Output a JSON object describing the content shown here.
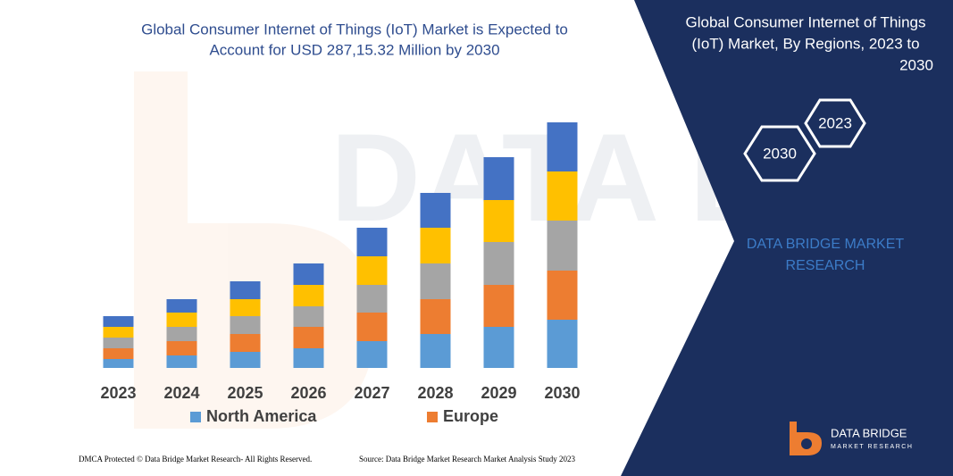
{
  "chart_data": {
    "type": "bar",
    "stacked": true,
    "title": [
      "Global Consumer Internet of Things (IoT) Market is Expected to",
      "Account for USD 287,15.32 Million by 2030"
    ],
    "categories": [
      "2023",
      "2024",
      "2025",
      "2026",
      "2027",
      "2028",
      "2029",
      "2030"
    ],
    "series": [
      {
        "name": "North America",
        "color": "#5b9bd5",
        "values": [
          10,
          14,
          18,
          22,
          30,
          38,
          46,
          54
        ]
      },
      {
        "name": "Europe",
        "color": "#ed7d31",
        "values": [
          12,
          16,
          20,
          24,
          32,
          39,
          47,
          55
        ]
      },
      {
        "color": "#a5a5a5",
        "values": [
          12,
          16,
          20,
          23,
          31,
          40,
          48,
          56
        ]
      },
      {
        "color": "#ffc000",
        "values": [
          12,
          16,
          19,
          24,
          32,
          40,
          47,
          55
        ]
      },
      {
        "color": "#4472c4",
        "values": [
          12,
          15,
          20,
          24,
          32,
          39,
          48,
          55
        ]
      }
    ],
    "ylim": [
      0,
      275
    ],
    "grid": false,
    "legend": "bottom"
  },
  "panel": {
    "title": [
      "Global Consumer Internet of Things",
      "(IoT) Market, By Regions, 2023 to",
      "2030"
    ],
    "hexagons": [
      "2023",
      "2030"
    ],
    "brand": [
      "DATA BRIDGE MARKET",
      "RESEARCH"
    ]
  },
  "logo": {
    "name": "DATA BRIDGE",
    "tagline": "MARKET RESEARCH"
  },
  "footer": {
    "left": "DMCA Protected © Data Bridge Market Research-  All Rights Reserved.",
    "right": "Source: Data Bridge Market Research  Market Analysis Study 2023"
  }
}
